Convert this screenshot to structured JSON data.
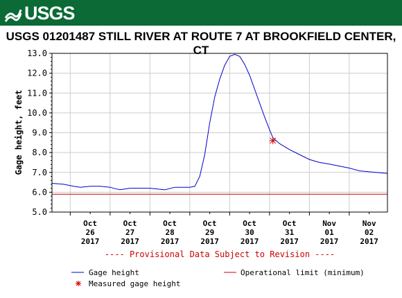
{
  "header": {
    "logo_text": "USGS"
  },
  "colors": {
    "banner": "#0b6a36",
    "series": "#0000cc",
    "limit": "#cc0000",
    "measured": "#cc0000",
    "grid": "#cccccc"
  },
  "chart_data": {
    "type": "line",
    "title": "USGS 01201487 STILL RIVER AT ROUTE 7 AT BROOKFIELD CENTER, CT",
    "ylabel": "Gage height, feet",
    "xlabel": "",
    "ylim": [
      5.0,
      13.0
    ],
    "yticks": [
      "5.0",
      "6.0",
      "7.0",
      "8.0",
      "9.0",
      "10.0",
      "11.0",
      "12.0",
      "13.0"
    ],
    "xlim": [
      "2017-10-25T13:00",
      "2017-11-02T23:00"
    ],
    "xticks": [
      {
        "date": "2017-10-26",
        "label": [
          "Oct",
          "26",
          "2017"
        ]
      },
      {
        "date": "2017-10-27",
        "label": [
          "Oct",
          "27",
          "2017"
        ]
      },
      {
        "date": "2017-10-28",
        "label": [
          "Oct",
          "28",
          "2017"
        ]
      },
      {
        "date": "2017-10-29",
        "label": [
          "Oct",
          "29",
          "2017"
        ]
      },
      {
        "date": "2017-10-30",
        "label": [
          "Oct",
          "30",
          "2017"
        ]
      },
      {
        "date": "2017-10-31",
        "label": [
          "Oct",
          "31",
          "2017"
        ]
      },
      {
        "date": "2017-11-01",
        "label": [
          "Nov",
          "01",
          "2017"
        ]
      },
      {
        "date": "2017-11-02",
        "label": [
          "Nov",
          "02",
          "2017"
        ]
      }
    ],
    "grid": true,
    "series": [
      {
        "name": "Gage height",
        "values": [
          {
            "x": "2017-10-25T13:00",
            "y": 6.45
          },
          {
            "x": "2017-10-25T20:00",
            "y": 6.4
          },
          {
            "x": "2017-10-26T02:00",
            "y": 6.3
          },
          {
            "x": "2017-10-26T06:00",
            "y": 6.25
          },
          {
            "x": "2017-10-26T12:00",
            "y": 6.3
          },
          {
            "x": "2017-10-26T18:00",
            "y": 6.3
          },
          {
            "x": "2017-10-27T00:00",
            "y": 6.25
          },
          {
            "x": "2017-10-27T03:00",
            "y": 6.18
          },
          {
            "x": "2017-10-27T06:00",
            "y": 6.13
          },
          {
            "x": "2017-10-27T12:00",
            "y": 6.2
          },
          {
            "x": "2017-10-27T18:00",
            "y": 6.2
          },
          {
            "x": "2017-10-28T00:00",
            "y": 6.2
          },
          {
            "x": "2017-10-28T06:00",
            "y": 6.15
          },
          {
            "x": "2017-10-28T09:00",
            "y": 6.12
          },
          {
            "x": "2017-10-28T15:00",
            "y": 6.25
          },
          {
            "x": "2017-10-28T21:00",
            "y": 6.25
          },
          {
            "x": "2017-10-29T00:00",
            "y": 6.25
          },
          {
            "x": "2017-10-29T03:00",
            "y": 6.3
          },
          {
            "x": "2017-10-29T06:00",
            "y": 6.8
          },
          {
            "x": "2017-10-29T09:00",
            "y": 7.9
          },
          {
            "x": "2017-10-29T12:00",
            "y": 9.5
          },
          {
            "x": "2017-10-29T15:00",
            "y": 10.8
          },
          {
            "x": "2017-10-29T18:00",
            "y": 11.7
          },
          {
            "x": "2017-10-29T21:00",
            "y": 12.4
          },
          {
            "x": "2017-10-30T00:00",
            "y": 12.85
          },
          {
            "x": "2017-10-30T03:00",
            "y": 12.95
          },
          {
            "x": "2017-10-30T06:00",
            "y": 12.85
          },
          {
            "x": "2017-10-30T09:00",
            "y": 12.45
          },
          {
            "x": "2017-10-30T12:00",
            "y": 11.9
          },
          {
            "x": "2017-10-30T15:00",
            "y": 11.2
          },
          {
            "x": "2017-10-30T18:00",
            "y": 10.5
          },
          {
            "x": "2017-10-30T21:00",
            "y": 9.8
          },
          {
            "x": "2017-10-31T00:00",
            "y": 9.15
          },
          {
            "x": "2017-10-31T02:00",
            "y": 8.75
          },
          {
            "x": "2017-10-31T06:00",
            "y": 8.45
          },
          {
            "x": "2017-10-31T12:00",
            "y": 8.15
          },
          {
            "x": "2017-10-31T18:00",
            "y": 7.9
          },
          {
            "x": "2017-11-01T00:00",
            "y": 7.65
          },
          {
            "x": "2017-11-01T06:00",
            "y": 7.5
          },
          {
            "x": "2017-11-01T12:00",
            "y": 7.42
          },
          {
            "x": "2017-11-01T18:00",
            "y": 7.32
          },
          {
            "x": "2017-11-02T00:00",
            "y": 7.22
          },
          {
            "x": "2017-11-02T06:00",
            "y": 7.08
          },
          {
            "x": "2017-11-02T12:00",
            "y": 7.03
          },
          {
            "x": "2017-11-02T23:00",
            "y": 6.95
          }
        ]
      }
    ],
    "reference_lines": [
      {
        "name": "Operational limit (minimum)",
        "y": 5.9
      }
    ],
    "measurements": [
      {
        "name": "Measured gage height",
        "x": "2017-10-31T02:00",
        "y": 8.6
      }
    ],
    "annotation": "---- Provisional Data Subject to Revision ----",
    "legend": {
      "placement": "bottom",
      "entries": [
        "Gage height",
        "Operational limit (minimum)",
        "Measured gage height"
      ]
    }
  }
}
